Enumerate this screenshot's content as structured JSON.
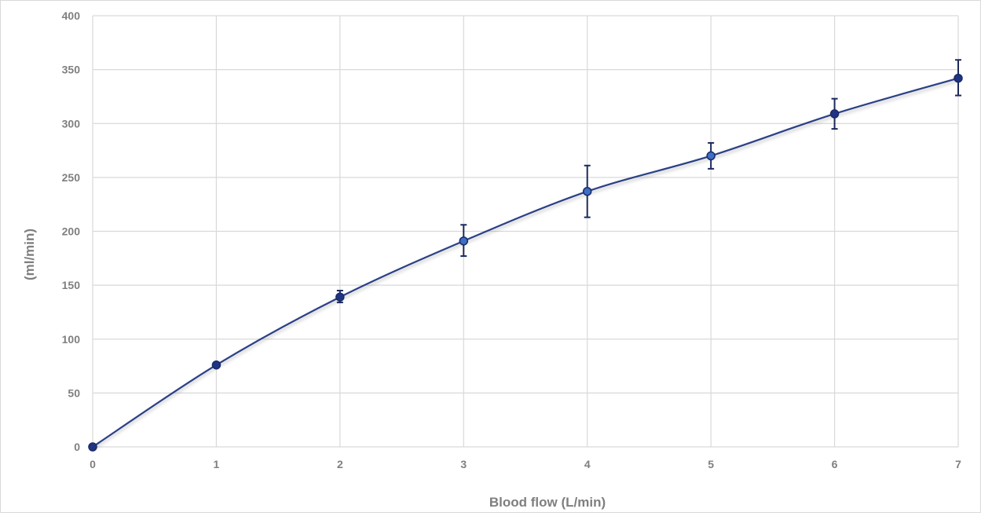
{
  "chart_data": {
    "type": "line",
    "title": "",
    "xlabel": "Blood flow (L/min)",
    "ylabel": "(ml/min)",
    "xlim": [
      0,
      7
    ],
    "ylim": [
      0,
      400
    ],
    "x_ticks": [
      0,
      1,
      2,
      3,
      4,
      5,
      6,
      7
    ],
    "y_ticks": [
      0,
      50,
      100,
      150,
      200,
      250,
      300,
      350,
      400
    ],
    "grid": true,
    "legend": "none",
    "colors": {
      "line": "#2a3f86",
      "marker": "#1f3484",
      "marker_highlight": "#3d6fc4",
      "error_bar": "#1c2a5c",
      "grid": "#d9d9d9",
      "text": "#7f7f7f"
    },
    "series": [
      {
        "x": [
          0,
          1,
          2,
          3,
          4,
          5,
          6,
          7
        ],
        "y": [
          0,
          76,
          139,
          191,
          237,
          270,
          309,
          342
        ],
        "error_low": [
          null,
          null,
          134,
          177,
          213,
          258,
          295,
          326
        ],
        "error_high": [
          null,
          null,
          145,
          206,
          261,
          282,
          323,
          359
        ]
      }
    ]
  }
}
